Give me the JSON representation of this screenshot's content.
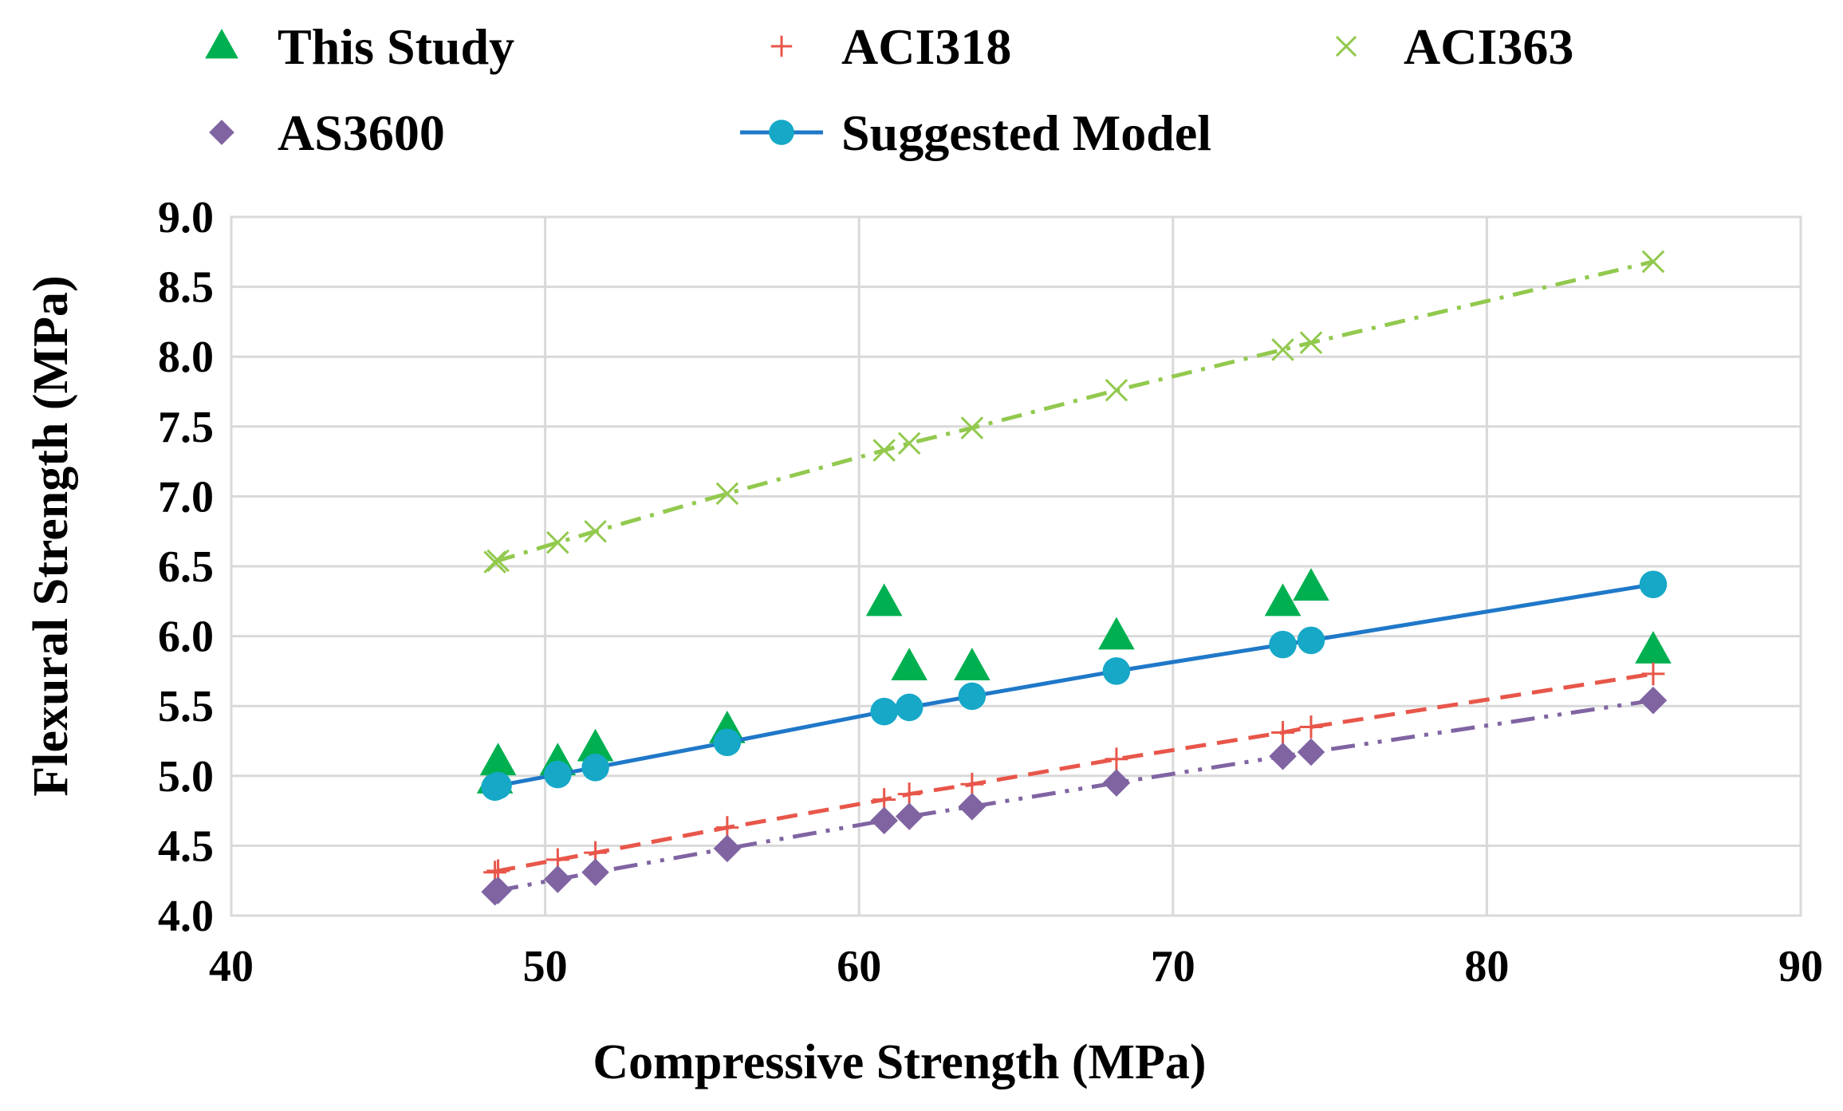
{
  "chart_data": {
    "type": "scatter",
    "title": "",
    "xlabel": "Compressive Strength (MPa)",
    "ylabel": "Flexural Strength (MPa)",
    "xlim": [
      40,
      90
    ],
    "ylim": [
      4.0,
      9.0
    ],
    "xticks": [
      "40",
      "50",
      "60",
      "70",
      "80",
      "90"
    ],
    "yticks": [
      "4.0",
      "4.5",
      "5.0",
      "5.5",
      "6.0",
      "6.5",
      "7.0",
      "7.5",
      "8.0",
      "8.5",
      "9.0"
    ],
    "grid": true,
    "legend_position": "top",
    "series": [
      {
        "name": "This Study",
        "marker": "triangle",
        "color": "#00b050",
        "line": "none",
        "x": [
          48.4,
          48.5,
          50.4,
          51.6,
          55.8,
          60.8,
          61.6,
          63.6,
          68.2,
          73.5,
          74.4,
          85.3
        ],
        "y": [
          4.97,
          5.1,
          5.1,
          5.2,
          5.33,
          6.24,
          5.78,
          5.78,
          6.0,
          6.24,
          6.35,
          5.9
        ]
      },
      {
        "name": "ACI318",
        "marker": "plus",
        "color": "#e8564a",
        "line": "dashed",
        "x": [
          48.4,
          48.5,
          50.4,
          51.6,
          55.8,
          60.8,
          61.6,
          63.6,
          68.2,
          73.5,
          74.4,
          85.3
        ],
        "y": [
          4.31,
          4.32,
          4.4,
          4.45,
          4.63,
          4.83,
          4.87,
          4.94,
          5.12,
          5.31,
          5.35,
          5.73
        ]
      },
      {
        "name": "ACI363",
        "marker": "x",
        "color": "#92c94e",
        "line": "dash-dot",
        "x": [
          48.4,
          48.5,
          50.4,
          51.6,
          55.8,
          60.8,
          61.6,
          63.6,
          68.2,
          73.5,
          74.4,
          85.3
        ],
        "y": [
          6.53,
          6.54,
          6.67,
          6.75,
          7.02,
          7.33,
          7.38,
          7.49,
          7.76,
          8.05,
          8.1,
          8.68
        ]
      },
      {
        "name": "AS3600",
        "marker": "diamond",
        "color": "#8064a2",
        "line": "dash-dot-dot",
        "x": [
          48.4,
          48.5,
          50.4,
          51.6,
          55.8,
          60.8,
          61.6,
          63.6,
          68.2,
          73.5,
          74.4,
          85.3
        ],
        "y": [
          4.17,
          4.18,
          4.26,
          4.31,
          4.48,
          4.68,
          4.71,
          4.78,
          4.95,
          5.14,
          5.17,
          5.54
        ]
      },
      {
        "name": "Suggested Model",
        "marker": "circle",
        "color": "#17a8c8",
        "line_color": "#1f78c8",
        "line": "solid",
        "x": [
          48.4,
          48.5,
          50.4,
          51.6,
          55.8,
          60.8,
          61.6,
          63.6,
          68.2,
          73.5,
          74.4,
          85.3
        ],
        "y": [
          4.92,
          4.93,
          5.01,
          5.06,
          5.24,
          5.46,
          5.49,
          5.57,
          5.75,
          5.94,
          5.97,
          6.37
        ]
      }
    ]
  }
}
